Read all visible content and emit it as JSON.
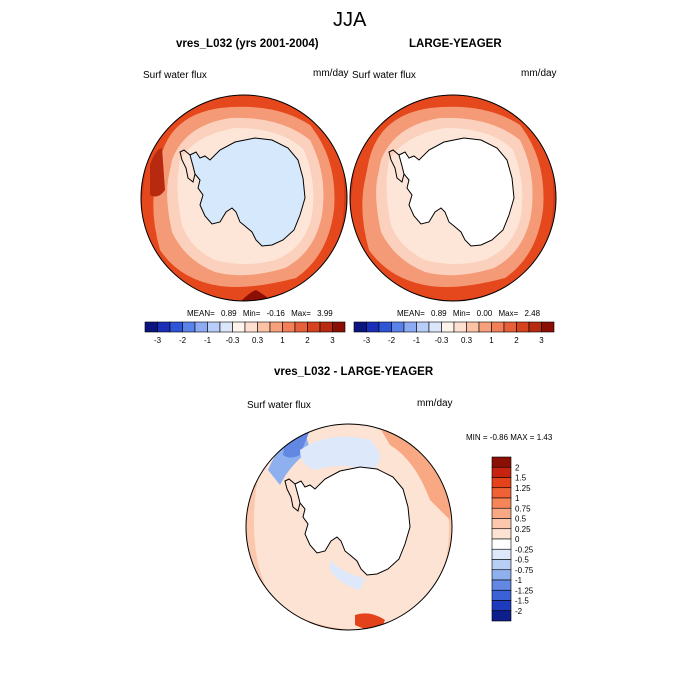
{
  "page_title": "JJA",
  "panels": [
    {
      "title": "vres_L032 (yrs 2001-2004)",
      "variable": "Surf water flux",
      "units": "mm/day",
      "stats": {
        "mean_label": "MEAN=",
        "mean": "0.89",
        "min_label": "Min=",
        "min": "-0.16",
        "max_label": "Max=",
        "max": "3.99"
      },
      "land_fill": "#d6e8fb",
      "field": {
        "outer_ring": "#e4481c",
        "middle_ring": "#f59a76",
        "inner_ring": "#fbd1bd",
        "coastal_ring": "#fde6d8"
      }
    },
    {
      "title": "LARGE-YEAGER",
      "variable": "Surf water flux",
      "units": "mm/day",
      "stats": {
        "mean_label": "MEAN=",
        "mean": "0.89",
        "min_label": "Min=",
        "min": "0.00",
        "max_label": "Max=",
        "max": "2.48"
      },
      "land_fill": "#ffffff",
      "field": {
        "outer_ring": "#e4481c",
        "middle_ring": "#f59a76",
        "inner_ring": "#fbd1bd",
        "coastal_ring": "#fde6d8"
      }
    }
  ],
  "top_colorbar": {
    "labels": [
      "-3",
      "-2",
      "-1",
      "-0.3",
      "0.3",
      "1",
      "2",
      "3"
    ],
    "colors": [
      "#0b1580",
      "#1a2fb8",
      "#2e54d8",
      "#5a82ea",
      "#8cabf2",
      "#b8cdf7",
      "#dbe6fb",
      "#fff4ec",
      "#fde0cf",
      "#fbc2a6",
      "#f7a07c",
      "#f27f58",
      "#e8603a",
      "#d6431f",
      "#b82a10",
      "#8b0f05"
    ]
  },
  "diff_panel": {
    "title": "vres_L032 - LARGE-YEAGER",
    "variable": "Surf water flux",
    "units": "mm/day",
    "minmax_text": "MIN = -0.86 MAX =  1.43",
    "land_fill": "#ffffff",
    "colorbar": {
      "labels": [
        "2",
        "1.5",
        "1.25",
        "1",
        "0.75",
        "0.5",
        "0.25",
        "0",
        "-0.25",
        "-0.5",
        "-0.75",
        "-1",
        "-1.25",
        "-1.5",
        "-2"
      ],
      "colors": [
        "#8b0f05",
        "#c62410",
        "#e4421a",
        "#f06236",
        "#f68558",
        "#f9a884",
        "#fbc8ae",
        "#fde3d4",
        "#ffffff",
        "#dde8fa",
        "#b9cef5",
        "#8fb0ef",
        "#6288e4",
        "#3b61d6",
        "#1f3bbd",
        "#0e1e8c"
      ]
    }
  }
}
